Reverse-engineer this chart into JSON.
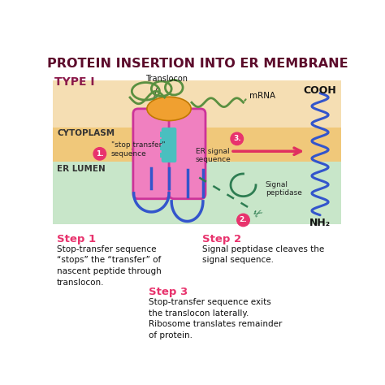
{
  "title": "PROTEIN INSERTION INTO ER MEMBRANE",
  "title_fontsize": 11.5,
  "title_color": "#5C0B2B",
  "type_label": "TYPE I",
  "type_color": "#8B1A4A",
  "bg_color": "#ffffff",
  "cytoplasm_color": "#F5DEB3",
  "membrane_color": "#F0C87A",
  "erlumen_color": "#C8E6C9",
  "cytoplasm_label": "CYTOPLASM",
  "erlumen_label": "ER LUMEN",
  "translocon_label": "Translocon",
  "mrna_label": "mRNA",
  "cooh_label": "COOH",
  "nh2_label": "NH₂",
  "er_signal_label": "ER signal\nsequence",
  "signal_peptidase_label": "Signal\npeptidase",
  "stop_transfer_label": "\"stop transfer\"\nsequence",
  "step1_title": "Step 1",
  "step1_text": "Stop-transfer sequence\n“stops” the “transfer” of\nnascent peptide through\ntranslocon.",
  "step2_title": "Step 2",
  "step2_text": "Signal peptidase cleaves the\nsignal sequence.",
  "step3_title": "Step 3",
  "step3_text": "Stop-transfer sequence exits\nthe translocon laterally.\nRibosome translates remainder\nof protein.",
  "step_title_color": "#E8336D",
  "step_text_color": "#111111",
  "pink_fill": "#F080C0",
  "pink_edge": "#CC3399",
  "blue_chain": "#3355CC",
  "teal_pore": "#4ABFBF",
  "orange_ribo": "#F0A030",
  "green_mrna": "#5A9040",
  "green_peptidase": "#2E7D52",
  "circle_color": "#E8336D",
  "arrow_red": "#E03060"
}
